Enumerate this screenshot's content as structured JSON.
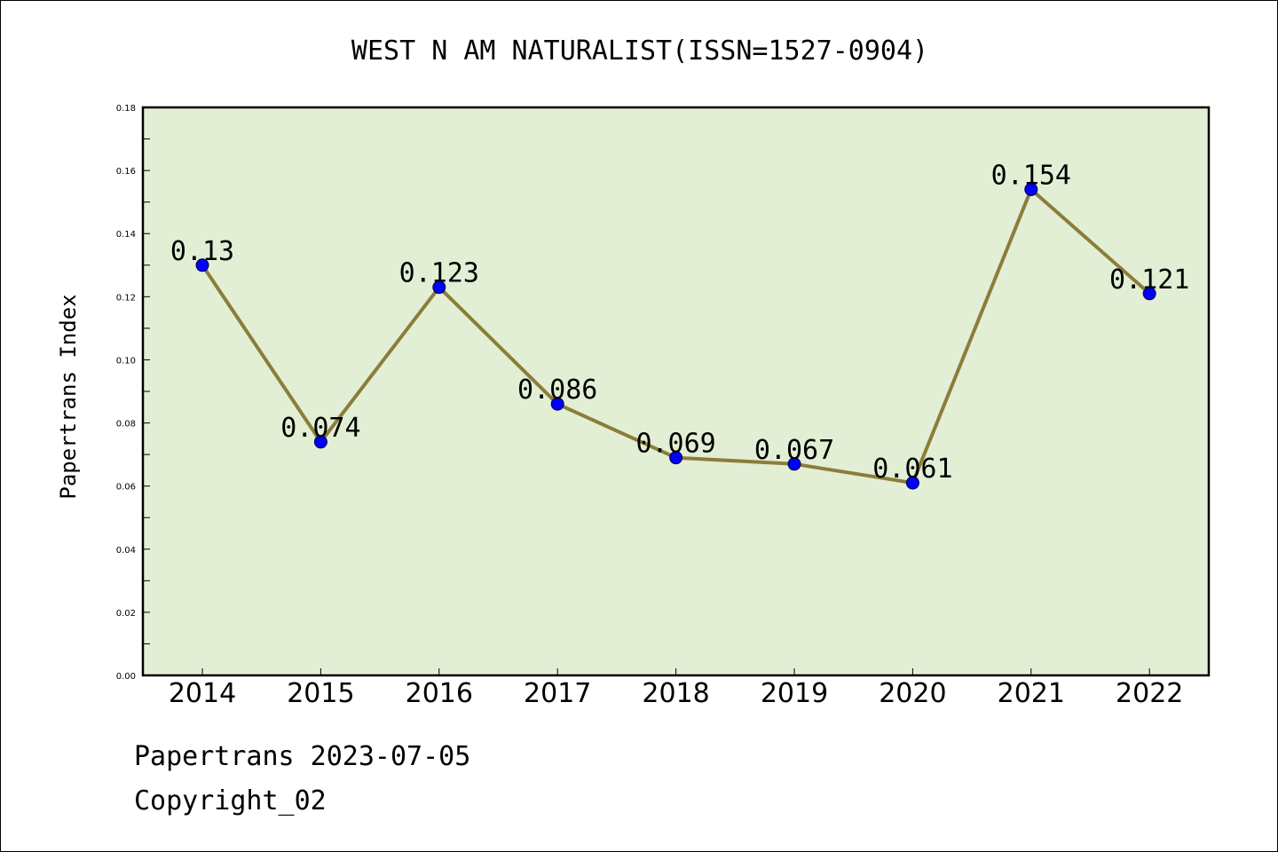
{
  "chart_data": {
    "type": "line",
    "title": "WEST N AM NATURALIST(ISSN=1527-0904)",
    "xlabel": "",
    "ylabel": "Papertrans Index",
    "categories": [
      "2014",
      "2015",
      "2016",
      "2017",
      "2018",
      "2019",
      "2020",
      "2021",
      "2022"
    ],
    "series": [
      {
        "values": [
          0.13,
          0.074,
          0.123,
          0.086,
          0.069,
          0.067,
          0.061,
          0.154,
          0.121
        ],
        "data_labels": [
          "0.13",
          "0.074",
          "0.123",
          "0.086",
          "0.069",
          "0.067",
          "0.061",
          "0.154",
          "0.121"
        ]
      }
    ],
    "ylim": [
      0,
      0.18
    ],
    "yticks": [
      "0.00",
      "0.02",
      "0.04",
      "0.06",
      "0.08",
      "0.10",
      "0.12",
      "0.14",
      "0.16",
      "0.18"
    ],
    "grid": false,
    "legend": "none",
    "colors": {
      "plot_background": "#e2efd5",
      "line": "#8b7d3a",
      "marker": "#0000ff",
      "axes": "#000000"
    }
  },
  "footer": {
    "date_line": "Papertrans 2023-07-05",
    "copyright_line": "Copyright_02"
  }
}
